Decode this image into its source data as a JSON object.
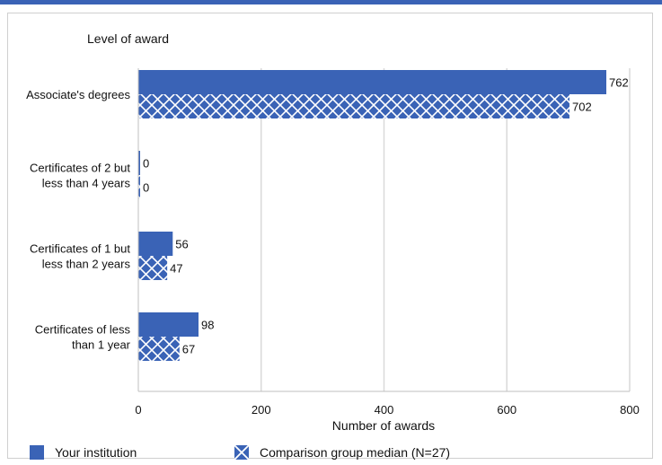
{
  "chart_data": {
    "type": "bar",
    "orientation": "horizontal",
    "title": "",
    "category_axis_label": "Level of award",
    "xlabel": "Number of awards",
    "xlim": [
      0,
      800
    ],
    "xticks": [
      0,
      200,
      400,
      600,
      800
    ],
    "grid": true,
    "legend_position": "bottom",
    "categories": [
      "Associate's degrees",
      "Certificates of 2 but less than 4 years",
      "Certificates of 1 but less than 2 years",
      "Certificates of less than 1 year"
    ],
    "category_lines": [
      [
        "Associate's degrees"
      ],
      [
        "Certificates of 2 but",
        "less than 4 years"
      ],
      [
        "Certificates of 1 but",
        "less than 2 years"
      ],
      [
        "Certificates of less",
        "than 1 year"
      ]
    ],
    "series": [
      {
        "name": "Your institution",
        "values": [
          762,
          0,
          56,
          98
        ],
        "color": "#3a63b6",
        "pattern": "solid"
      },
      {
        "name": "Comparison group median (N=27)",
        "values": [
          702,
          0,
          47,
          67
        ],
        "color": "#3a63b6",
        "pattern": "crosshatch"
      }
    ]
  }
}
